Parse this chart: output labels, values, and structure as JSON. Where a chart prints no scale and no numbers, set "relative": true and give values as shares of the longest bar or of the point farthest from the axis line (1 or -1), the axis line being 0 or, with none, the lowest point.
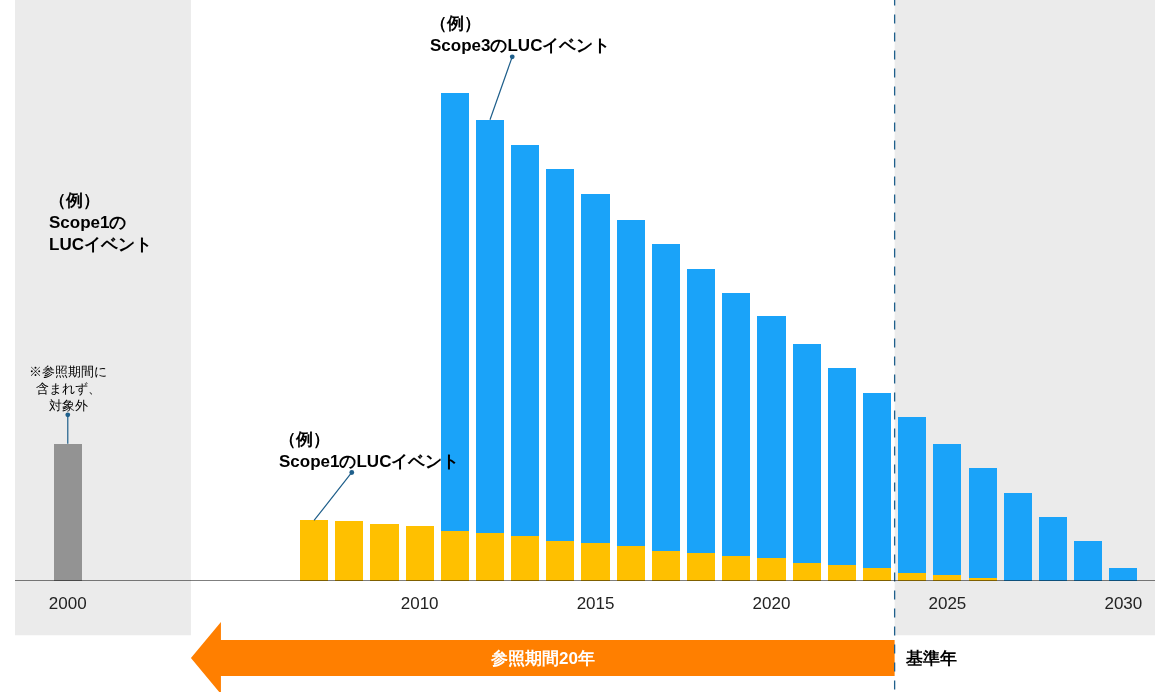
{
  "chart_data": {
    "type": "bar",
    "stacked": true,
    "relative": true,
    "grid": false,
    "tick_labels": "x",
    "x": [
      2000,
      2007,
      2008,
      2009,
      2010,
      2011,
      2012,
      2013,
      2014,
      2015,
      2016,
      2017,
      2018,
      2019,
      2020,
      2021,
      2022,
      2023,
      2024,
      2025,
      2026,
      2027,
      2028,
      2029,
      2030
    ],
    "xlim": [
      1998.5,
      2030.9
    ],
    "xticks": [
      2000,
      2010,
      2015,
      2020,
      2025,
      2030
    ],
    "series": [
      {
        "color": "#939393",
        "values": [
          0.281,
          null,
          null,
          null,
          null,
          null,
          null,
          null,
          null,
          null,
          null,
          null,
          null,
          null,
          null,
          null,
          null,
          null,
          null,
          null,
          null,
          null,
          null,
          null,
          null
        ]
      },
      {
        "color": "#ffc000",
        "values": [
          null,
          0.124,
          0.122,
          0.116,
          0.112,
          0.102,
          0.098,
          0.092,
          0.081,
          0.077,
          0.071,
          0.061,
          0.057,
          0.051,
          0.047,
          0.037,
          0.033,
          0.026,
          0.016,
          0.012,
          0.006,
          null,
          null,
          null,
          null
        ]
      },
      {
        "color": "#1aa3f9",
        "values": [
          null,
          null,
          null,
          null,
          null,
          0.898,
          0.847,
          0.802,
          0.764,
          0.717,
          0.668,
          0.629,
          0.582,
          0.54,
          0.495,
          0.448,
          0.403,
          0.36,
          0.32,
          0.269,
          0.226,
          0.181,
          0.132,
          0.081,
          0.026
        ]
      }
    ],
    "bands": [
      {
        "axis": "x",
        "from": 1998.5,
        "to": 2003.5,
        "color": "#ebebeb"
      },
      {
        "axis": "x",
        "from": 2023.5,
        "to": 2030.9,
        "color": "#ebebeb"
      }
    ],
    "ref_lines": [
      {
        "axis": "x",
        "value": 2023.5,
        "color": "#1f5f8b",
        "line_style": "dashed",
        "label": "基準年"
      }
    ],
    "annotations": [
      {
        "text": "（例）\nScope3のLUCイベント",
        "x": 2012,
        "y": 0.945
      },
      {
        "text": "（例）\nScope1のLUCイベント",
        "x": 2007,
        "y": 0.124
      },
      {
        "text": "※参照期間に含まれず、対象外",
        "x": 2000,
        "y": 0.281
      },
      "（例）\nScope1の\nLUCイベント",
      "参照期間20年"
    ]
  }
}
